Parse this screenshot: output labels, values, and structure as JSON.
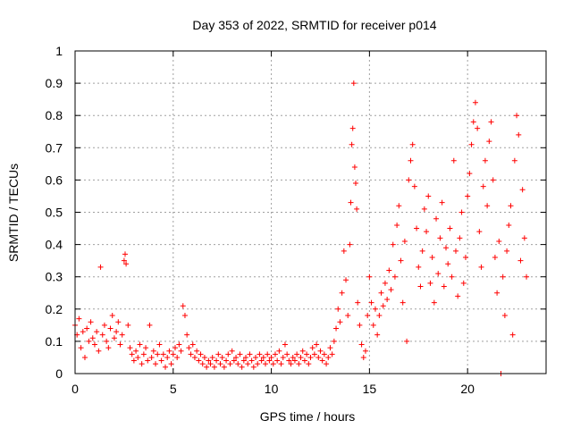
{
  "chart_data": {
    "type": "scatter",
    "title": "Day 353 of 2022, SRMTID for receiver p014",
    "xlabel": "GPS time / hours",
    "ylabel": "SRMTID / TECUs",
    "xlim": [
      0,
      24
    ],
    "ylim": [
      0,
      1
    ],
    "x_ticks": [
      0,
      5,
      10,
      15,
      20
    ],
    "x_tick_labels": [
      "0",
      "5",
      "10",
      "15",
      "20"
    ],
    "y_ticks": [
      0,
      0.1,
      0.2,
      0.3,
      0.4,
      0.5,
      0.6,
      0.7,
      0.8,
      0.9,
      1
    ],
    "y_tick_labels": [
      "0",
      "0.1",
      "0.2",
      "0.3",
      "0.4",
      "0.5",
      "0.6",
      "0.7",
      "0.8",
      "0.9",
      "1"
    ],
    "grid": true,
    "marker": "+",
    "color": "#ff0000",
    "series": [
      {
        "name": "p014",
        "points": [
          [
            0.0,
            0.15
          ],
          [
            0.1,
            0.12
          ],
          [
            0.2,
            0.17
          ],
          [
            0.3,
            0.08
          ],
          [
            0.4,
            0.13
          ],
          [
            0.5,
            0.05
          ],
          [
            0.6,
            0.14
          ],
          [
            0.7,
            0.1
          ],
          [
            0.8,
            0.16
          ],
          [
            0.9,
            0.11
          ],
          [
            1.0,
            0.09
          ],
          [
            1.1,
            0.13
          ],
          [
            1.2,
            0.07
          ],
          [
            1.3,
            0.33
          ],
          [
            1.4,
            0.12
          ],
          [
            1.5,
            0.15
          ],
          [
            1.6,
            0.1
          ],
          [
            1.7,
            0.08
          ],
          [
            1.8,
            0.14
          ],
          [
            1.9,
            0.18
          ],
          [
            2.0,
            0.11
          ],
          [
            2.1,
            0.13
          ],
          [
            2.2,
            0.16
          ],
          [
            2.3,
            0.09
          ],
          [
            2.4,
            0.12
          ],
          [
            2.5,
            0.35
          ],
          [
            2.55,
            0.37
          ],
          [
            2.6,
            0.34
          ],
          [
            2.7,
            0.15
          ],
          [
            2.8,
            0.08
          ],
          [
            2.9,
            0.06
          ],
          [
            3.0,
            0.04
          ],
          [
            3.1,
            0.07
          ],
          [
            3.2,
            0.05
          ],
          [
            3.3,
            0.09
          ],
          [
            3.4,
            0.03
          ],
          [
            3.5,
            0.06
          ],
          [
            3.6,
            0.08
          ],
          [
            3.7,
            0.04
          ],
          [
            3.8,
            0.15
          ],
          [
            3.9,
            0.05
          ],
          [
            4.0,
            0.07
          ],
          [
            4.1,
            0.03
          ],
          [
            4.2,
            0.06
          ],
          [
            4.3,
            0.09
          ],
          [
            4.4,
            0.04
          ],
          [
            4.5,
            0.06
          ],
          [
            4.6,
            0.02
          ],
          [
            4.7,
            0.05
          ],
          [
            4.8,
            0.07
          ],
          [
            4.9,
            0.03
          ],
          [
            5.0,
            0.06
          ],
          [
            5.1,
            0.08
          ],
          [
            5.2,
            0.05
          ],
          [
            5.3,
            0.09
          ],
          [
            5.4,
            0.07
          ],
          [
            5.5,
            0.21
          ],
          [
            5.6,
            0.18
          ],
          [
            5.7,
            0.12
          ],
          [
            5.8,
            0.08
          ],
          [
            5.9,
            0.06
          ],
          [
            6.0,
            0.09
          ],
          [
            6.1,
            0.05
          ],
          [
            6.2,
            0.07
          ],
          [
            6.3,
            0.04
          ],
          [
            6.4,
            0.06
          ],
          [
            6.5,
            0.03
          ],
          [
            6.6,
            0.05
          ],
          [
            6.7,
            0.02
          ],
          [
            6.8,
            0.04
          ],
          [
            6.9,
            0.03
          ],
          [
            7.0,
            0.05
          ],
          [
            7.1,
            0.02
          ],
          [
            7.2,
            0.04
          ],
          [
            7.3,
            0.06
          ],
          [
            7.4,
            0.03
          ],
          [
            7.5,
            0.05
          ],
          [
            7.6,
            0.02
          ],
          [
            7.7,
            0.04
          ],
          [
            7.8,
            0.06
          ],
          [
            7.9,
            0.03
          ],
          [
            8.0,
            0.07
          ],
          [
            8.1,
            0.04
          ],
          [
            8.2,
            0.05
          ],
          [
            8.3,
            0.03
          ],
          [
            8.4,
            0.06
          ],
          [
            8.5,
            0.02
          ],
          [
            8.6,
            0.04
          ],
          [
            8.7,
            0.05
          ],
          [
            8.8,
            0.03
          ],
          [
            8.9,
            0.06
          ],
          [
            9.0,
            0.04
          ],
          [
            9.1,
            0.02
          ],
          [
            9.2,
            0.05
          ],
          [
            9.3,
            0.03
          ],
          [
            9.4,
            0.06
          ],
          [
            9.5,
            0.04
          ],
          [
            9.6,
            0.05
          ],
          [
            9.7,
            0.03
          ],
          [
            9.8,
            0.06
          ],
          [
            9.9,
            0.04
          ],
          [
            10.0,
            0.05
          ],
          [
            10.1,
            0.03
          ],
          [
            10.2,
            0.06
          ],
          [
            10.3,
            0.04
          ],
          [
            10.4,
            0.07
          ],
          [
            10.5,
            0.03
          ],
          [
            10.6,
            0.05
          ],
          [
            10.7,
            0.09
          ],
          [
            10.8,
            0.06
          ],
          [
            10.9,
            0.04
          ],
          [
            11.0,
            0.03
          ],
          [
            11.1,
            0.05
          ],
          [
            11.2,
            0.04
          ],
          [
            11.3,
            0.06
          ],
          [
            11.4,
            0.03
          ],
          [
            11.5,
            0.05
          ],
          [
            11.6,
            0.07
          ],
          [
            11.7,
            0.04
          ],
          [
            11.8,
            0.06
          ],
          [
            11.9,
            0.03
          ],
          [
            12.0,
            0.05
          ],
          [
            12.1,
            0.08
          ],
          [
            12.2,
            0.06
          ],
          [
            12.3,
            0.09
          ],
          [
            12.4,
            0.05
          ],
          [
            12.5,
            0.07
          ],
          [
            12.6,
            0.04
          ],
          [
            12.7,
            0.06
          ],
          [
            12.8,
            0.03
          ],
          [
            12.9,
            0.05
          ],
          [
            13.0,
            0.08
          ],
          [
            13.1,
            0.06
          ],
          [
            13.2,
            0.1
          ],
          [
            13.3,
            0.14
          ],
          [
            13.4,
            0.2
          ],
          [
            13.5,
            0.16
          ],
          [
            13.6,
            0.25
          ],
          [
            13.7,
            0.38
          ],
          [
            13.8,
            0.29
          ],
          [
            13.9,
            0.18
          ],
          [
            14.0,
            0.4
          ],
          [
            14.05,
            0.53
          ],
          [
            14.1,
            0.71
          ],
          [
            14.15,
            0.76
          ],
          [
            14.2,
            0.9
          ],
          [
            14.25,
            0.64
          ],
          [
            14.3,
            0.59
          ],
          [
            14.35,
            0.51
          ],
          [
            14.4,
            0.22
          ],
          [
            14.5,
            0.15
          ],
          [
            14.6,
            0.09
          ],
          [
            14.7,
            0.05
          ],
          [
            14.8,
            0.07
          ],
          [
            14.9,
            0.18
          ],
          [
            15.0,
            0.3
          ],
          [
            15.1,
            0.22
          ],
          [
            15.2,
            0.15
          ],
          [
            15.3,
            0.2
          ],
          [
            15.4,
            0.12
          ],
          [
            15.5,
            0.18
          ],
          [
            15.6,
            0.25
          ],
          [
            15.7,
            0.21
          ],
          [
            15.8,
            0.28
          ],
          [
            15.9,
            0.23
          ],
          [
            16.0,
            0.32
          ],
          [
            16.1,
            0.26
          ],
          [
            16.2,
            0.4
          ],
          [
            16.3,
            0.3
          ],
          [
            16.4,
            0.46
          ],
          [
            16.5,
            0.52
          ],
          [
            16.6,
            0.35
          ],
          [
            16.7,
            0.22
          ],
          [
            16.8,
            0.41
          ],
          [
            16.9,
            0.1
          ],
          [
            17.0,
            0.6
          ],
          [
            17.1,
            0.66
          ],
          [
            17.2,
            0.71
          ],
          [
            17.3,
            0.58
          ],
          [
            17.4,
            0.45
          ],
          [
            17.5,
            0.33
          ],
          [
            17.6,
            0.27
          ],
          [
            17.7,
            0.38
          ],
          [
            17.8,
            0.51
          ],
          [
            17.9,
            0.44
          ],
          [
            18.0,
            0.55
          ],
          [
            18.1,
            0.28
          ],
          [
            18.2,
            0.36
          ],
          [
            18.3,
            0.22
          ],
          [
            18.4,
            0.48
          ],
          [
            18.5,
            0.31
          ],
          [
            18.6,
            0.42
          ],
          [
            18.7,
            0.53
          ],
          [
            18.8,
            0.27
          ],
          [
            18.9,
            0.39
          ],
          [
            19.0,
            0.34
          ],
          [
            19.1,
            0.45
          ],
          [
            19.2,
            0.3
          ],
          [
            19.3,
            0.66
          ],
          [
            19.4,
            0.38
          ],
          [
            19.5,
            0.24
          ],
          [
            19.6,
            0.42
          ],
          [
            19.7,
            0.5
          ],
          [
            19.8,
            0.28
          ],
          [
            19.9,
            0.36
          ],
          [
            20.0,
            0.55
          ],
          [
            20.1,
            0.62
          ],
          [
            20.2,
            0.71
          ],
          [
            20.3,
            0.78
          ],
          [
            20.4,
            0.84
          ],
          [
            20.5,
            0.76
          ],
          [
            20.6,
            0.44
          ],
          [
            20.7,
            0.33
          ],
          [
            20.8,
            0.58
          ],
          [
            20.9,
            0.66
          ],
          [
            21.0,
            0.52
          ],
          [
            21.1,
            0.72
          ],
          [
            21.2,
            0.78
          ],
          [
            21.3,
            0.6
          ],
          [
            21.4,
            0.36
          ],
          [
            21.5,
            0.25
          ],
          [
            21.6,
            0.41
          ],
          [
            21.7,
            0.0
          ],
          [
            21.8,
            0.3
          ],
          [
            21.9,
            0.18
          ],
          [
            22.0,
            0.38
          ],
          [
            22.1,
            0.46
          ],
          [
            22.2,
            0.52
          ],
          [
            22.3,
            0.12
          ],
          [
            22.4,
            0.66
          ],
          [
            22.5,
            0.8
          ],
          [
            22.6,
            0.74
          ],
          [
            22.7,
            0.35
          ],
          [
            22.8,
            0.57
          ],
          [
            22.9,
            0.42
          ],
          [
            23.0,
            0.3
          ]
        ]
      }
    ]
  }
}
